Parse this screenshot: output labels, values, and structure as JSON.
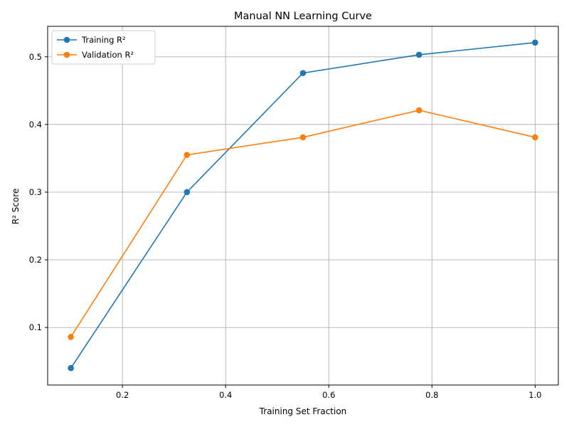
{
  "chart_data": {
    "type": "line",
    "title": "Manual NN Learning Curve",
    "xlabel": "Training Set Fraction",
    "ylabel": "R² Score",
    "xlim": [
      0.055,
      1.045
    ],
    "ylim": [
      0.015,
      0.545
    ],
    "xticks": [
      0.2,
      0.4,
      0.6,
      0.8,
      1.0
    ],
    "xtick_labels": [
      "0.2",
      "0.4",
      "0.6",
      "0.8",
      "1.0"
    ],
    "yticks": [
      0.1,
      0.2,
      0.3,
      0.4,
      0.5
    ],
    "ytick_labels": [
      "0.1",
      "0.2",
      "0.3",
      "0.4",
      "0.5"
    ],
    "grid": true,
    "legend_position": "top-left",
    "x": [
      0.1,
      0.325,
      0.55,
      0.775,
      1.0
    ],
    "series": [
      {
        "name": "Training R²",
        "color": "#1f77b4",
        "values": [
          0.04,
          0.3,
          0.476,
          0.503,
          0.521
        ]
      },
      {
        "name": "Validation R²",
        "color": "#ff7f0e",
        "values": [
          0.086,
          0.355,
          0.381,
          0.421,
          0.381
        ]
      }
    ]
  }
}
